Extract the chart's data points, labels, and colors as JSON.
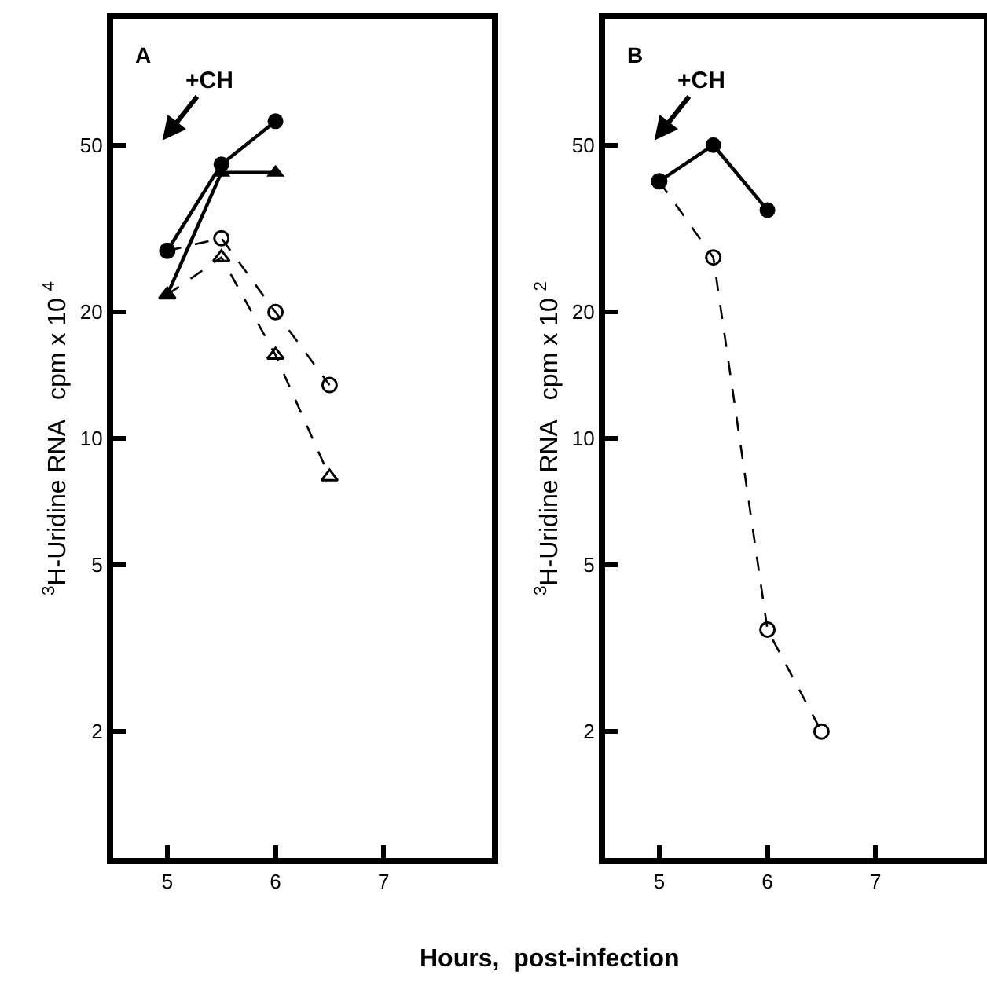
{
  "chart_data": [
    {
      "type": "line",
      "xlabel": "Hours,  post-infection",
      "ylabel": "$^{3}$H-Uridine RNA   cpm x 10 $^{4}$",
      "log": "y",
      "xlim": [
        4.5,
        8.0
      ],
      "xticks": [
        5,
        6,
        7
      ],
      "ylim": [
        1,
        100
      ],
      "yticks": [
        2,
        5,
        10,
        20,
        50
      ],
      "annotations": [
        "A",
        "+CH"
      ],
      "series": [
        {
          "x": [
            5,
            5.5,
            6,
            6.5
          ],
          "values": [
            28,
            30,
            20,
            13.4
          ],
          "color": "#000000",
          "marker": "circle-open",
          "line_style": "dashed"
        },
        {
          "x": [
            5,
            5.5,
            6,
            6.5
          ],
          "values": [
            22,
            27,
            15.8,
            8.1
          ],
          "color": "#000000",
          "marker": "triangle-open",
          "line_style": "dashed"
        },
        {
          "x": [
            5,
            5.5,
            6
          ],
          "values": [
            28,
            45,
            57
          ],
          "color": "#000000",
          "marker": "circle",
          "line_style": "solid"
        },
        {
          "x": [
            5,
            5.5,
            6
          ],
          "values": [
            22,
            43,
            43
          ],
          "color": "#000000",
          "marker": "triangle",
          "line_style": "solid"
        }
      ]
    },
    {
      "type": "line",
      "ylabel": "$^{3}$H-Uridine RNA   cpm x 10 $^{2}$",
      "log": "y",
      "xlim": [
        4.5,
        8.0
      ],
      "xticks": [
        5,
        6,
        7
      ],
      "ylim": [
        1,
        100
      ],
      "yticks": [
        2,
        5,
        10,
        20,
        50
      ],
      "annotations": [
        "B",
        "+CH"
      ],
      "series": [
        {
          "x": [
            5,
            5.5,
            6,
            6.5
          ],
          "values": [
            41,
            27,
            3.5,
            2.0
          ],
          "color": "#000000",
          "marker": "circle-open",
          "line_style": "dashed"
        },
        {
          "x": [
            5,
            5.5,
            6
          ],
          "values": [
            41,
            50,
            35
          ],
          "color": "#000000",
          "marker": "circle",
          "line_style": "solid"
        }
      ]
    }
  ]
}
